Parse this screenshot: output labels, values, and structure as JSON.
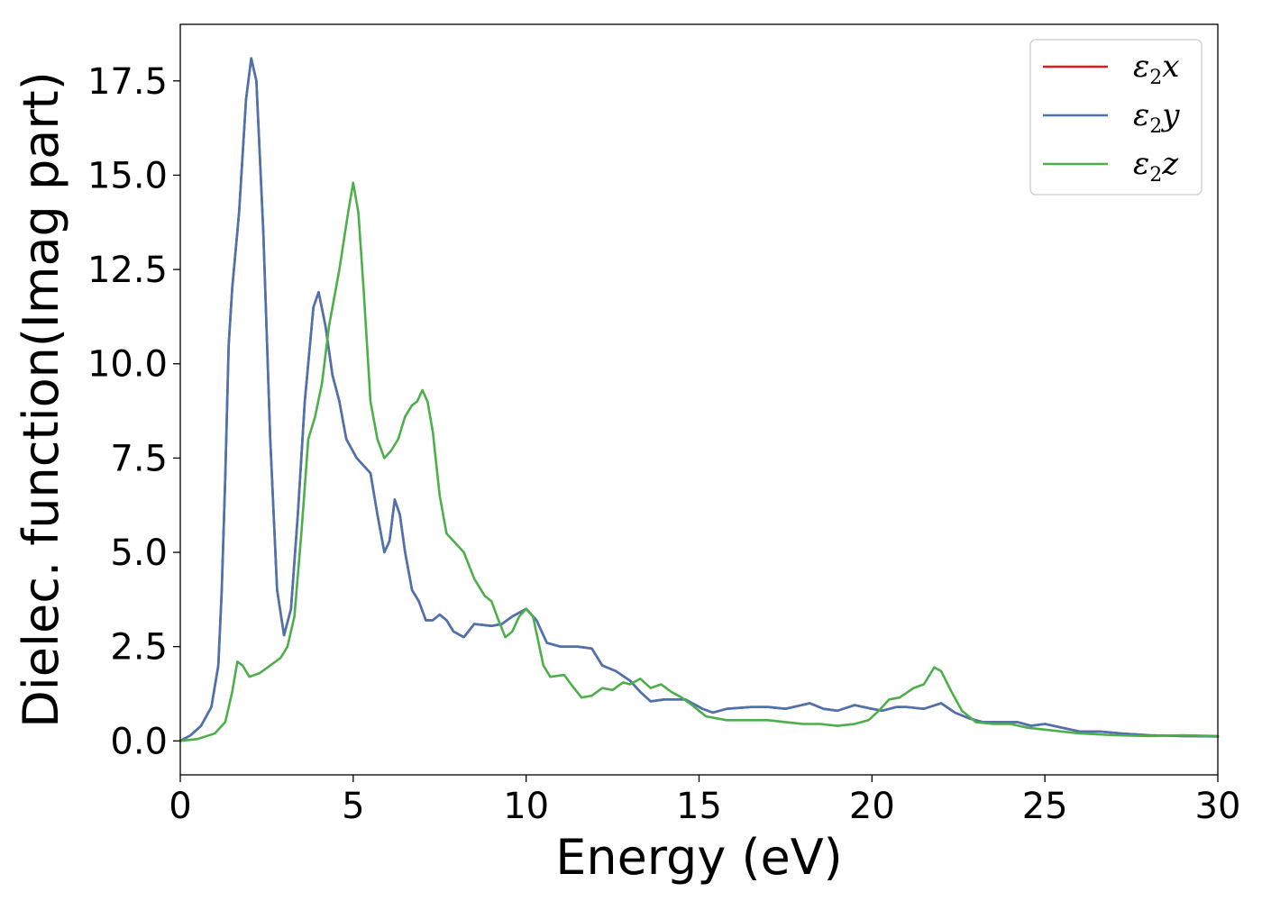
{
  "chart_data": {
    "type": "line",
    "title": "",
    "xlabel": "Energy (eV)",
    "ylabel": "Dielec. function(Imag part)",
    "xlim": [
      0,
      30
    ],
    "ylim": [
      -0.9,
      19.0
    ],
    "x_ticks": [
      0,
      5,
      10,
      15,
      20,
      25,
      30
    ],
    "x_tick_labels": [
      "0",
      "5",
      "10",
      "15",
      "20",
      "25",
      "30"
    ],
    "y_ticks": [
      0.0,
      2.5,
      5.0,
      7.5,
      10.0,
      12.5,
      15.0,
      17.5
    ],
    "y_tick_labels": [
      "0.0",
      "2.5",
      "5.0",
      "7.5",
      "10.0",
      "12.5",
      "15.0",
      "17.5"
    ],
    "grid": false,
    "legend_position": "top-right",
    "series": [
      {
        "name": "ε2x",
        "color": "#e41a1c",
        "points": [
          [
            0,
            0
          ],
          [
            0.3,
            0.15
          ],
          [
            0.6,
            0.4
          ],
          [
            0.9,
            0.9
          ],
          [
            1.1,
            2.0
          ],
          [
            1.2,
            4.0
          ],
          [
            1.3,
            7.0
          ],
          [
            1.4,
            10.5
          ],
          [
            1.5,
            12.0
          ],
          [
            1.7,
            14.0
          ],
          [
            1.9,
            17.0
          ],
          [
            2.05,
            18.1
          ],
          [
            2.2,
            17.5
          ],
          [
            2.4,
            13.5
          ],
          [
            2.6,
            8.0
          ],
          [
            2.8,
            4.0
          ],
          [
            3.0,
            2.8
          ],
          [
            3.2,
            3.5
          ],
          [
            3.4,
            6.0
          ],
          [
            3.6,
            9.0
          ],
          [
            3.85,
            11.5
          ],
          [
            4.0,
            11.9
          ],
          [
            4.2,
            11.0
          ],
          [
            4.4,
            9.7
          ],
          [
            4.6,
            9.0
          ],
          [
            4.8,
            8.0
          ],
          [
            5.1,
            7.5
          ],
          [
            5.3,
            7.3
          ],
          [
            5.5,
            7.1
          ],
          [
            5.7,
            6.0
          ],
          [
            5.9,
            5.0
          ],
          [
            6.05,
            5.3
          ],
          [
            6.2,
            6.4
          ],
          [
            6.35,
            6.0
          ],
          [
            6.5,
            5.0
          ],
          [
            6.7,
            4.0
          ],
          [
            6.9,
            3.7
          ],
          [
            7.1,
            3.2
          ],
          [
            7.3,
            3.2
          ],
          [
            7.5,
            3.35
          ],
          [
            7.7,
            3.2
          ],
          [
            7.9,
            2.9
          ],
          [
            8.2,
            2.75
          ],
          [
            8.5,
            3.1
          ],
          [
            9.0,
            3.05
          ],
          [
            9.3,
            3.1
          ],
          [
            9.6,
            3.3
          ],
          [
            10.0,
            3.5
          ],
          [
            10.3,
            3.2
          ],
          [
            10.6,
            2.6
          ],
          [
            11.0,
            2.5
          ],
          [
            11.5,
            2.5
          ],
          [
            11.9,
            2.45
          ],
          [
            12.2,
            2.0
          ],
          [
            12.6,
            1.85
          ],
          [
            13.0,
            1.6
          ],
          [
            13.3,
            1.3
          ],
          [
            13.6,
            1.05
          ],
          [
            14.0,
            1.1
          ],
          [
            14.6,
            1.1
          ],
          [
            15.1,
            0.85
          ],
          [
            15.4,
            0.75
          ],
          [
            15.8,
            0.85
          ],
          [
            16.5,
            0.9
          ],
          [
            17.0,
            0.9
          ],
          [
            17.5,
            0.85
          ],
          [
            18.2,
            1.0
          ],
          [
            18.6,
            0.85
          ],
          [
            19.0,
            0.8
          ],
          [
            19.5,
            0.95
          ],
          [
            20.0,
            0.85
          ],
          [
            20.3,
            0.8
          ],
          [
            20.7,
            0.9
          ],
          [
            21.0,
            0.9
          ],
          [
            21.5,
            0.85
          ],
          [
            22.0,
            1.0
          ],
          [
            22.4,
            0.75
          ],
          [
            22.8,
            0.6
          ],
          [
            23.2,
            0.5
          ],
          [
            23.6,
            0.5
          ],
          [
            24.2,
            0.5
          ],
          [
            24.6,
            0.4
          ],
          [
            25.0,
            0.45
          ],
          [
            25.5,
            0.35
          ],
          [
            26.0,
            0.25
          ],
          [
            26.6,
            0.25
          ],
          [
            27.2,
            0.2
          ],
          [
            28.0,
            0.15
          ],
          [
            29.0,
            0.13
          ],
          [
            30.0,
            0.12
          ]
        ]
      },
      {
        "name": "ε2y",
        "color": "#4a74b0",
        "points": [
          [
            0,
            0
          ],
          [
            0.3,
            0.15
          ],
          [
            0.6,
            0.4
          ],
          [
            0.9,
            0.9
          ],
          [
            1.1,
            2.0
          ],
          [
            1.2,
            4.0
          ],
          [
            1.3,
            7.0
          ],
          [
            1.4,
            10.5
          ],
          [
            1.5,
            12.0
          ],
          [
            1.7,
            14.0
          ],
          [
            1.9,
            17.0
          ],
          [
            2.05,
            18.1
          ],
          [
            2.2,
            17.5
          ],
          [
            2.4,
            13.5
          ],
          [
            2.6,
            8.0
          ],
          [
            2.8,
            4.0
          ],
          [
            3.0,
            2.8
          ],
          [
            3.2,
            3.5
          ],
          [
            3.4,
            6.0
          ],
          [
            3.6,
            9.0
          ],
          [
            3.85,
            11.5
          ],
          [
            4.0,
            11.9
          ],
          [
            4.2,
            11.0
          ],
          [
            4.4,
            9.7
          ],
          [
            4.6,
            9.0
          ],
          [
            4.8,
            8.0
          ],
          [
            5.1,
            7.5
          ],
          [
            5.3,
            7.3
          ],
          [
            5.5,
            7.1
          ],
          [
            5.7,
            6.0
          ],
          [
            5.9,
            5.0
          ],
          [
            6.05,
            5.3
          ],
          [
            6.2,
            6.4
          ],
          [
            6.35,
            6.0
          ],
          [
            6.5,
            5.0
          ],
          [
            6.7,
            4.0
          ],
          [
            6.9,
            3.7
          ],
          [
            7.1,
            3.2
          ],
          [
            7.3,
            3.2
          ],
          [
            7.5,
            3.35
          ],
          [
            7.7,
            3.2
          ],
          [
            7.9,
            2.9
          ],
          [
            8.2,
            2.75
          ],
          [
            8.5,
            3.1
          ],
          [
            9.0,
            3.05
          ],
          [
            9.3,
            3.1
          ],
          [
            9.6,
            3.3
          ],
          [
            10.0,
            3.5
          ],
          [
            10.3,
            3.2
          ],
          [
            10.6,
            2.6
          ],
          [
            11.0,
            2.5
          ],
          [
            11.5,
            2.5
          ],
          [
            11.9,
            2.45
          ],
          [
            12.2,
            2.0
          ],
          [
            12.6,
            1.85
          ],
          [
            13.0,
            1.6
          ],
          [
            13.3,
            1.3
          ],
          [
            13.6,
            1.05
          ],
          [
            14.0,
            1.1
          ],
          [
            14.6,
            1.1
          ],
          [
            15.1,
            0.85
          ],
          [
            15.4,
            0.75
          ],
          [
            15.8,
            0.85
          ],
          [
            16.5,
            0.9
          ],
          [
            17.0,
            0.9
          ],
          [
            17.5,
            0.85
          ],
          [
            18.2,
            1.0
          ],
          [
            18.6,
            0.85
          ],
          [
            19.0,
            0.8
          ],
          [
            19.5,
            0.95
          ],
          [
            20.0,
            0.85
          ],
          [
            20.3,
            0.8
          ],
          [
            20.7,
            0.9
          ],
          [
            21.0,
            0.9
          ],
          [
            21.5,
            0.85
          ],
          [
            22.0,
            1.0
          ],
          [
            22.4,
            0.75
          ],
          [
            22.8,
            0.6
          ],
          [
            23.2,
            0.5
          ],
          [
            23.6,
            0.5
          ],
          [
            24.2,
            0.5
          ],
          [
            24.6,
            0.4
          ],
          [
            25.0,
            0.45
          ],
          [
            25.5,
            0.35
          ],
          [
            26.0,
            0.25
          ],
          [
            26.6,
            0.25
          ],
          [
            27.2,
            0.2
          ],
          [
            28.0,
            0.15
          ],
          [
            29.0,
            0.13
          ],
          [
            30.0,
            0.12
          ]
        ]
      },
      {
        "name": "ε2z",
        "color": "#4daf4a",
        "points": [
          [
            0,
            0
          ],
          [
            0.5,
            0.05
          ],
          [
            1.0,
            0.2
          ],
          [
            1.3,
            0.5
          ],
          [
            1.5,
            1.3
          ],
          [
            1.65,
            2.1
          ],
          [
            1.8,
            2.0
          ],
          [
            2.0,
            1.7
          ],
          [
            2.3,
            1.8
          ],
          [
            2.6,
            2.0
          ],
          [
            2.9,
            2.2
          ],
          [
            3.1,
            2.5
          ],
          [
            3.3,
            3.3
          ],
          [
            3.5,
            5.5
          ],
          [
            3.7,
            8.0
          ],
          [
            3.9,
            8.6
          ],
          [
            4.1,
            9.5
          ],
          [
            4.3,
            11.0
          ],
          [
            4.6,
            12.5
          ],
          [
            4.85,
            14.0
          ],
          [
            5.0,
            14.8
          ],
          [
            5.15,
            14.0
          ],
          [
            5.3,
            12.0
          ],
          [
            5.5,
            9.0
          ],
          [
            5.7,
            8.0
          ],
          [
            5.9,
            7.5
          ],
          [
            6.1,
            7.7
          ],
          [
            6.3,
            8.0
          ],
          [
            6.5,
            8.6
          ],
          [
            6.7,
            8.9
          ],
          [
            6.85,
            9.0
          ],
          [
            7.0,
            9.3
          ],
          [
            7.15,
            9.0
          ],
          [
            7.3,
            8.2
          ],
          [
            7.5,
            6.5
          ],
          [
            7.7,
            5.5
          ],
          [
            7.9,
            5.3
          ],
          [
            8.2,
            5.0
          ],
          [
            8.5,
            4.3
          ],
          [
            8.8,
            3.85
          ],
          [
            9.0,
            3.7
          ],
          [
            9.2,
            3.2
          ],
          [
            9.4,
            2.75
          ],
          [
            9.6,
            2.9
          ],
          [
            9.8,
            3.3
          ],
          [
            10.0,
            3.5
          ],
          [
            10.2,
            3.3
          ],
          [
            10.5,
            2.0
          ],
          [
            10.7,
            1.7
          ],
          [
            11.1,
            1.75
          ],
          [
            11.3,
            1.5
          ],
          [
            11.6,
            1.15
          ],
          [
            11.9,
            1.2
          ],
          [
            12.2,
            1.4
          ],
          [
            12.5,
            1.35
          ],
          [
            12.8,
            1.55
          ],
          [
            13.0,
            1.5
          ],
          [
            13.3,
            1.65
          ],
          [
            13.6,
            1.4
          ],
          [
            13.9,
            1.5
          ],
          [
            14.2,
            1.3
          ],
          [
            14.5,
            1.15
          ],
          [
            14.8,
            0.95
          ],
          [
            15.2,
            0.65
          ],
          [
            15.8,
            0.55
          ],
          [
            16.5,
            0.55
          ],
          [
            17.0,
            0.55
          ],
          [
            17.5,
            0.5
          ],
          [
            18.0,
            0.45
          ],
          [
            18.5,
            0.45
          ],
          [
            19.0,
            0.4
          ],
          [
            19.5,
            0.45
          ],
          [
            19.9,
            0.55
          ],
          [
            20.2,
            0.8
          ],
          [
            20.5,
            1.1
          ],
          [
            20.8,
            1.15
          ],
          [
            21.2,
            1.4
          ],
          [
            21.5,
            1.5
          ],
          [
            21.8,
            1.95
          ],
          [
            22.0,
            1.85
          ],
          [
            22.3,
            1.3
          ],
          [
            22.6,
            0.8
          ],
          [
            23.0,
            0.5
          ],
          [
            23.5,
            0.45
          ],
          [
            24.0,
            0.45
          ],
          [
            24.5,
            0.35
          ],
          [
            25.0,
            0.3
          ],
          [
            25.5,
            0.25
          ],
          [
            26.0,
            0.2
          ],
          [
            27.0,
            0.15
          ],
          [
            28.0,
            0.13
          ],
          [
            29.0,
            0.15
          ],
          [
            30.0,
            0.13
          ]
        ]
      }
    ]
  }
}
